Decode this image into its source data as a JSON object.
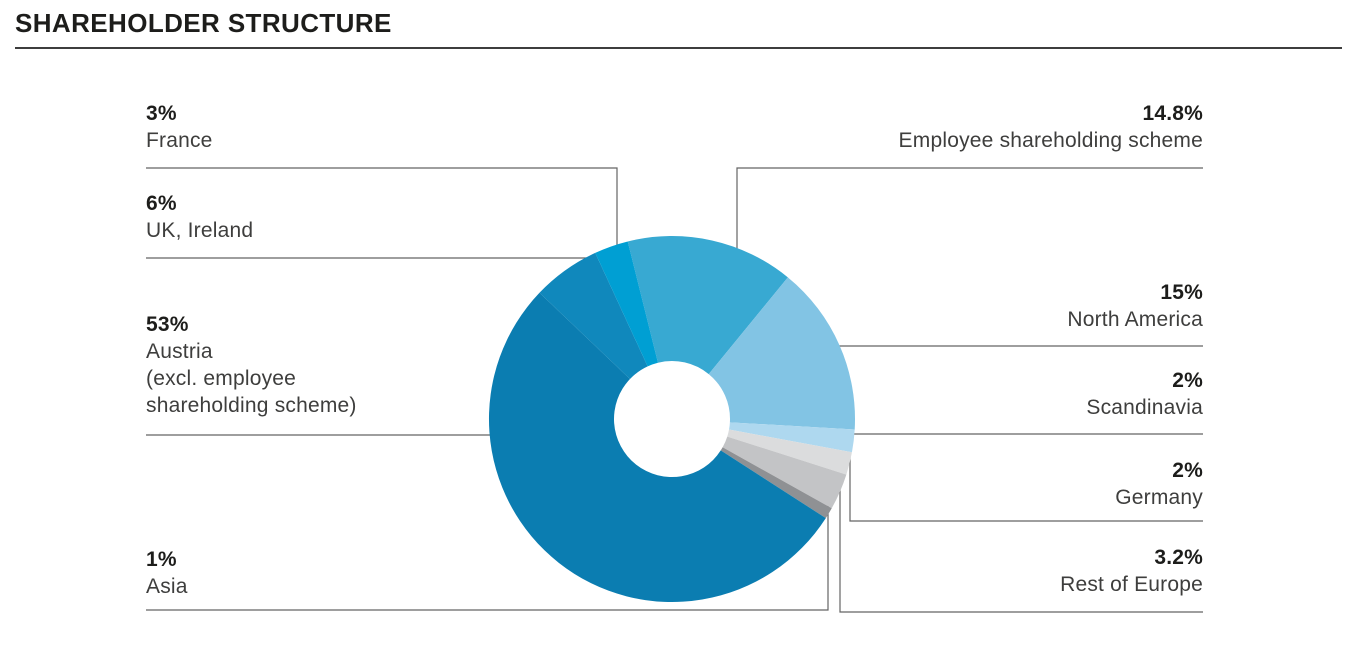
{
  "page": {
    "title": "SHAREHOLDER STRUCTURE"
  },
  "chart_data": {
    "type": "pie",
    "subtype": "donut",
    "title": "SHAREHOLDER STRUCTURE",
    "unit": "%",
    "total": 100,
    "start_angle_deg": -14,
    "clockwise": true,
    "legend_position": "callout-labels-left-right",
    "slices": [
      {
        "key": "employee",
        "label": "Employee shareholding scheme",
        "value": 14.8,
        "display": "14.8%",
        "color": "#38a9d2",
        "side": "right"
      },
      {
        "key": "north_america",
        "label": "North America",
        "value": 15,
        "display": "15%",
        "color": "#82c4e4",
        "side": "right"
      },
      {
        "key": "scandinavia",
        "label": "Scandinavia",
        "value": 2,
        "display": "2%",
        "color": "#aed8ef",
        "side": "right"
      },
      {
        "key": "germany",
        "label": "Germany",
        "value": 2,
        "display": "2%",
        "color": "#dbdcdd",
        "side": "right"
      },
      {
        "key": "rest_of_europe",
        "label": "Rest of Europe",
        "value": 3.2,
        "display": "3.2%",
        "color": "#c3c4c6",
        "side": "right"
      },
      {
        "key": "asia",
        "label": "Asia",
        "value": 1,
        "display": "1%",
        "color": "#8f9194",
        "side": "left"
      },
      {
        "key": "austria",
        "label": "Austria (excl. employee shareholding scheme)",
        "value": 53,
        "display": "53%",
        "color": "#0b7db1",
        "side": "left"
      },
      {
        "key": "uk_ireland",
        "label": "UK, Ireland",
        "value": 6,
        "display": "6%",
        "color": "#1088bc",
        "side": "left"
      },
      {
        "key": "france",
        "label": "France",
        "value": 3,
        "display": "3%",
        "color": "#009fd3",
        "side": "left"
      }
    ]
  },
  "labels": {
    "france": {
      "pct": "3%",
      "name": "France"
    },
    "uk_ireland": {
      "pct": "6%",
      "name": "UK, Ireland"
    },
    "austria": {
      "pct": "53%",
      "name": "Austria\n(excl. employee\nshareholding scheme)"
    },
    "asia": {
      "pct": "1%",
      "name": "Asia"
    },
    "employee": {
      "pct": "14.8%",
      "name": "Employee shareholding scheme"
    },
    "north_america": {
      "pct": "15%",
      "name": "North America"
    },
    "scandinavia": {
      "pct": "2%",
      "name": "Scandinavia"
    },
    "germany": {
      "pct": "2%",
      "name": "Germany"
    },
    "rest_of_europe": {
      "pct": "3.2%",
      "name": "Rest of Europe"
    }
  },
  "style": {
    "leader_line_color": "#646464",
    "title_color": "#1d1d1b",
    "text_color": "#3e3e3d"
  }
}
